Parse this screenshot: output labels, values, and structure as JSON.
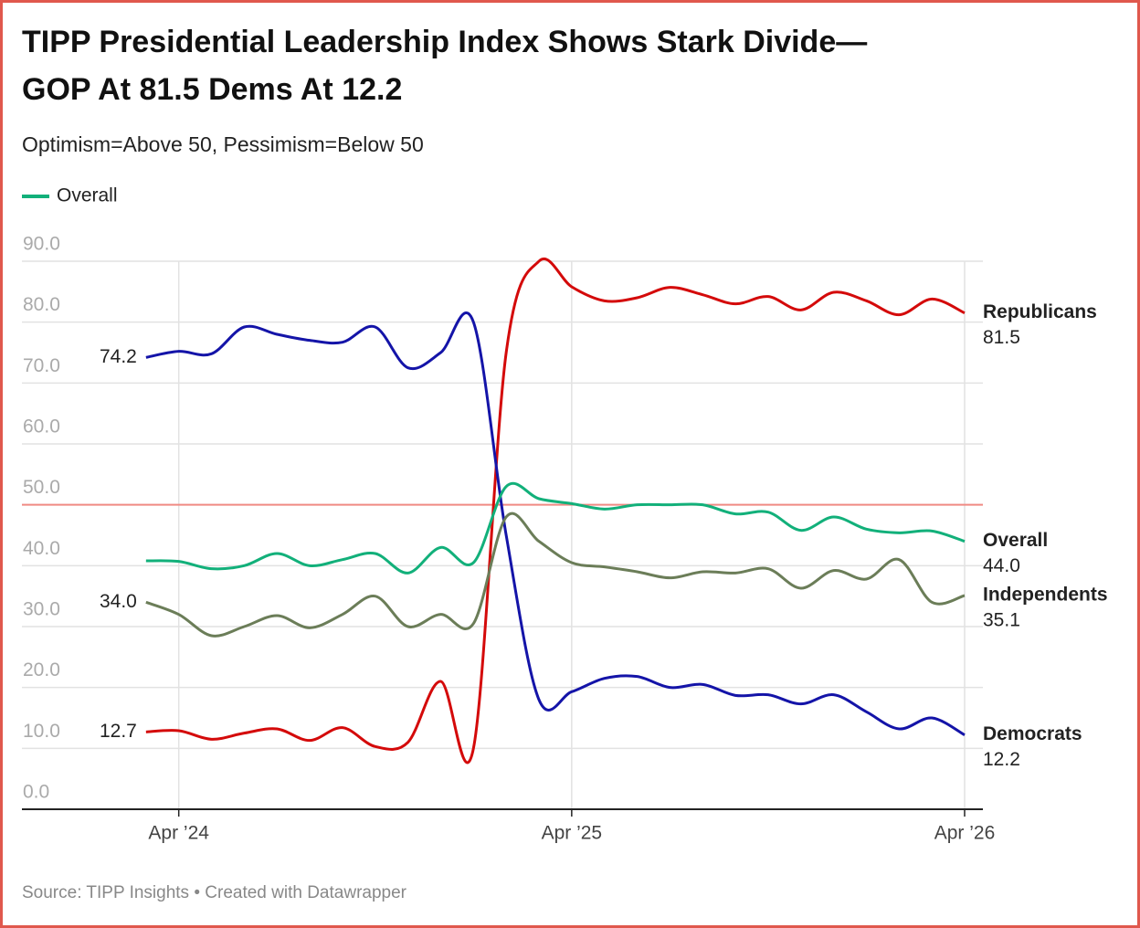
{
  "chart_data": {
    "type": "line",
    "title": [
      "TIPP Presidential Leadership Index Shows Stark Divide—",
      "GOP At 81.5 Dems At 12.2"
    ],
    "subtitle": "Optimism=Above 50, Pessimism=Below 50",
    "source": "Source: TIPP Insights • Created with Datawrapper",
    "x": [
      "2024-03",
      "2024-04",
      "2024-05",
      "2024-06",
      "2024-07",
      "2024-08",
      "2024-09",
      "2024-10",
      "2024-11",
      "2024-12",
      "2025-01",
      "2025-02",
      "2025-03",
      "2025-04",
      "2025-05",
      "2025-06",
      "2025-07",
      "2025-08",
      "2025-09",
      "2025-10",
      "2025-11",
      "2025-12",
      "2026-01",
      "2026-02",
      "2026-03",
      "2026-04"
    ],
    "xlim": [
      "2024-02",
      "2026-04"
    ],
    "xticks": [
      {
        "value": "2024-04",
        "label": "Apr ’24"
      },
      {
        "value": "2025-04",
        "label": "Apr ’25"
      },
      {
        "value": "2026-04",
        "label": "Apr ’26"
      }
    ],
    "ylim": [
      0,
      90
    ],
    "yticks": [
      {
        "value": 0,
        "label": "0.0"
      },
      {
        "value": 10,
        "label": "10.0"
      },
      {
        "value": 20,
        "label": "20.0"
      },
      {
        "value": 30,
        "label": "30.0"
      },
      {
        "value": 40,
        "label": "40.0"
      },
      {
        "value": 50,
        "label": "50.0"
      },
      {
        "value": 60,
        "label": "60.0"
      },
      {
        "value": 70,
        "label": "70.0"
      },
      {
        "value": 80,
        "label": "80.0"
      },
      {
        "value": 90,
        "label": "90.0"
      }
    ],
    "grid": true,
    "reference_line": {
      "value": 50,
      "color": "#f08a84"
    },
    "series": [
      {
        "name": "Republicans",
        "color": "#d40a0a",
        "in_legend": false,
        "values": [
          12.7,
          12.9,
          11.5,
          12.5,
          13.2,
          11.3,
          13.4,
          10.3,
          11,
          21,
          10,
          75,
          90,
          85.8,
          83.5,
          84,
          85.7,
          84.5,
          83,
          84.2,
          82,
          84.9,
          83.5,
          81.2,
          83.8,
          81.5
        ],
        "value_labels": [
          "12.7",
          null,
          null,
          null,
          null,
          null,
          null,
          null,
          null,
          null,
          null,
          null,
          null,
          null,
          null,
          null,
          null,
          null,
          null,
          null,
          null,
          null,
          null,
          null,
          null,
          "81.5"
        ]
      },
      {
        "name": "Democrats",
        "color": "#1414a8",
        "in_legend": false,
        "values": [
          74.2,
          75.2,
          74.8,
          79.2,
          78,
          77,
          76.7,
          79.2,
          72.5,
          75,
          80,
          45,
          18,
          19.3,
          21.5,
          21.8,
          20,
          20.5,
          18.7,
          18.8,
          17.3,
          18.8,
          16,
          13.2,
          15,
          12.2
        ],
        "value_labels": [
          "74.2",
          null,
          null,
          null,
          null,
          null,
          null,
          null,
          null,
          null,
          null,
          null,
          null,
          null,
          null,
          null,
          null,
          null,
          null,
          null,
          null,
          null,
          null,
          null,
          null,
          "12.2"
        ]
      },
      {
        "name": "Overall",
        "color": "#12b07a",
        "in_legend": true,
        "values": [
          40.8,
          40.7,
          39.5,
          40,
          42,
          40,
          41,
          42,
          38.8,
          43,
          40.5,
          53,
          51,
          50.2,
          49.3,
          50,
          50,
          50,
          48.5,
          48.8,
          45.8,
          48,
          46,
          45.4,
          45.7,
          44
        ],
        "value_labels": [
          null,
          null,
          null,
          null,
          null,
          null,
          null,
          null,
          null,
          null,
          null,
          null,
          null,
          null,
          null,
          null,
          null,
          null,
          null,
          null,
          null,
          null,
          null,
          null,
          null,
          "44.0"
        ]
      },
      {
        "name": "Independents",
        "color": "#6b7d58",
        "in_legend": false,
        "values": [
          34,
          32,
          28.5,
          30,
          31.8,
          29.8,
          32,
          35,
          30,
          32,
          30.5,
          48,
          44,
          40.5,
          39.8,
          39,
          38,
          39,
          38.8,
          39.5,
          36.3,
          39.2,
          37.8,
          41,
          34,
          35.1
        ],
        "value_labels": [
          "34.0",
          null,
          null,
          null,
          null,
          null,
          null,
          null,
          null,
          null,
          null,
          null,
          null,
          null,
          null,
          null,
          null,
          null,
          null,
          null,
          null,
          null,
          null,
          null,
          null,
          "35.1"
        ]
      }
    ]
  }
}
